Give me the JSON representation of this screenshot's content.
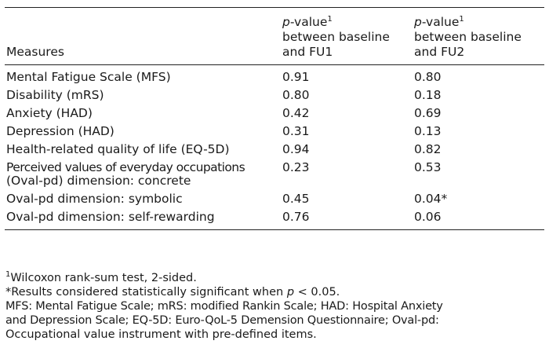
{
  "table": {
    "header": {
      "measures": "Measures",
      "col2": {
        "p": "p",
        "value": "-value",
        "sup": "1",
        "line2": "between baseline",
        "line3": "and FU1"
      },
      "col3": {
        "p": "p",
        "value": "-value",
        "sup": "1",
        "line2": "between baseline",
        "line3": "and FU2"
      }
    },
    "rows": [
      {
        "measure": "Mental Fatigue Scale (MFS)",
        "fu1": "0.91",
        "fu2": "0.80"
      },
      {
        "measure": "Disability (mRS)",
        "fu1": "0.80",
        "fu2": "0.18"
      },
      {
        "measure": "Anxiety (HAD)",
        "fu1": "0.42",
        "fu2": "0.69"
      },
      {
        "measure": "Depression (HAD)",
        "fu1": "0.31",
        "fu2": "0.13"
      },
      {
        "measure": "Health-related quality of life (EQ-5D)",
        "fu1": "0.94",
        "fu2": "0.82"
      },
      {
        "measure_line1": "Perceived values of everyday occupations",
        "measure_line2": "(Oval-pd) dimension: concrete",
        "fu1": "0.23",
        "fu2": "0.53"
      },
      {
        "measure": "Oval-pd dimension: symbolic",
        "fu1": "0.45",
        "fu2": "0.04*"
      },
      {
        "measure": "Oval-pd dimension: self-rewarding",
        "fu1": "0.76",
        "fu2": "0.06"
      }
    ]
  },
  "footnotes": {
    "note1_sup": "1",
    "note1_text": "Wilcoxon rank-sum test, 2-sided.",
    "note2_prefix": "*Results considered statistically significant when ",
    "note2_p": "p",
    "note2_suffix": " < 0.05.",
    "abbrev_line1": "MFS: Mental Fatigue Scale; mRS: modified Rankin Scale; HAD: Hospital Anxiety",
    "abbrev_line2": "and Depression Scale; EQ-5D: Euro-QoL-5 Demension Questionnaire; Oval-pd:",
    "abbrev_line3": "Occupational value instrument with pre-defined items."
  }
}
